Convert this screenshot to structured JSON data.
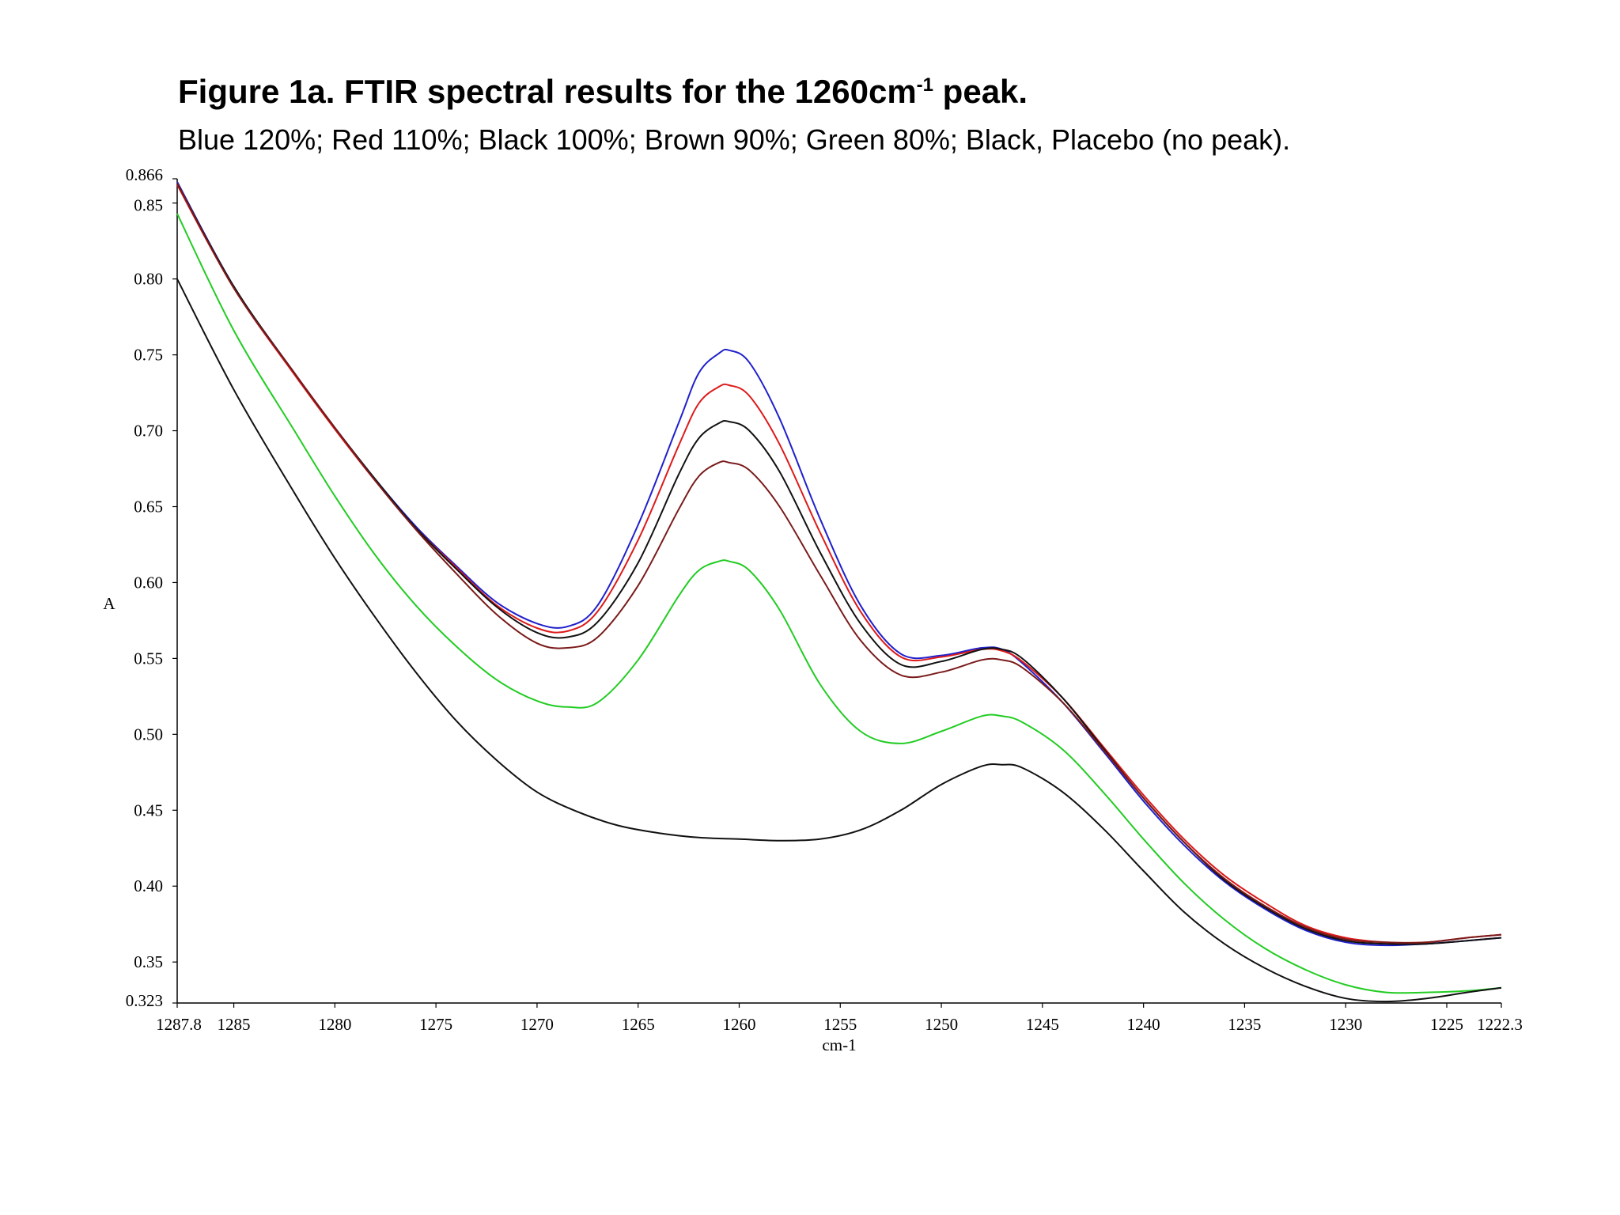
{
  "header": {
    "title_main": "Figure 1a. FTIR spectral results for the 1260cm",
    "title_sup": "-1",
    "title_end": " peak.",
    "subtitle": "Blue 120%; Red 110%; Black 100%; Brown 90%; Green 80%; Black, Placebo (no peak)."
  },
  "chart_data": {
    "type": "line",
    "title": "Figure 1a. FTIR spectral results for the 1260cm-1 peak.",
    "subtitle": "Blue 120%; Red 110%; Black 100%; Brown 90%; Green 80%; Black, Placebo (no peak).",
    "xlabel": "cm-1",
    "ylabel": "A",
    "xlim": [
      1287.8,
      1222.3
    ],
    "ylim": [
      0.323,
      0.866
    ],
    "x_reversed": true,
    "grid": false,
    "legend": "none",
    "x_ticks": [
      "1287.8",
      "1285",
      "1280",
      "1275",
      "1270",
      "1265",
      "1260",
      "1255",
      "1250",
      "1245",
      "1240",
      "1235",
      "1230",
      "1225",
      "1222.3"
    ],
    "x_tick_values": [
      1287.8,
      1285,
      1280,
      1275,
      1270,
      1265,
      1260,
      1255,
      1250,
      1245,
      1240,
      1235,
      1230,
      1225,
      1222.3
    ],
    "y_ticks": [
      "0.866",
      "0.85",
      "0.80",
      "0.75",
      "0.70",
      "0.65",
      "0.60",
      "0.55",
      "0.50",
      "0.45",
      "0.40",
      "0.35",
      "0.323"
    ],
    "y_tick_values": [
      0.866,
      0.85,
      0.8,
      0.75,
      0.7,
      0.65,
      0.6,
      0.55,
      0.5,
      0.45,
      0.4,
      0.35,
      0.323
    ],
    "series": [
      {
        "color": "#2020cc",
        "x": [
          1287.8,
          1285,
          1282,
          1280,
          1278,
          1276,
          1274,
          1272,
          1270,
          1268.5,
          1267,
          1265,
          1263,
          1262,
          1261,
          1260.5,
          1259.5,
          1258,
          1256,
          1254,
          1252,
          1250,
          1248,
          1247,
          1246,
          1244,
          1242,
          1240,
          1238,
          1236,
          1234,
          1232,
          1230,
          1228,
          1226,
          1224,
          1222.3
        ],
        "y": [
          0.864,
          0.795,
          0.738,
          0.702,
          0.668,
          0.637,
          0.611,
          0.587,
          0.573,
          0.571,
          0.585,
          0.638,
          0.705,
          0.738,
          0.751,
          0.753,
          0.745,
          0.708,
          0.642,
          0.585,
          0.553,
          0.552,
          0.557,
          0.556,
          0.547,
          0.521,
          0.489,
          0.456,
          0.427,
          0.403,
          0.385,
          0.371,
          0.363,
          0.361,
          0.362,
          0.364,
          0.366
        ]
      },
      {
        "color": "#dd1a1a",
        "x": [
          1287.8,
          1285,
          1282,
          1280,
          1278,
          1276,
          1274,
          1272,
          1270,
          1268.5,
          1267,
          1265,
          1263,
          1262,
          1261,
          1260.5,
          1259.5,
          1258,
          1256,
          1254,
          1252,
          1250,
          1248,
          1247,
          1246,
          1244,
          1242,
          1240,
          1238,
          1236,
          1234,
          1232,
          1230,
          1228,
          1226,
          1224,
          1222.3
        ],
        "y": [
          0.862,
          0.794,
          0.737,
          0.701,
          0.667,
          0.636,
          0.61,
          0.585,
          0.57,
          0.568,
          0.581,
          0.628,
          0.69,
          0.718,
          0.729,
          0.73,
          0.723,
          0.691,
          0.633,
          0.581,
          0.551,
          0.551,
          0.556,
          0.555,
          0.548,
          0.524,
          0.492,
          0.46,
          0.431,
          0.407,
          0.389,
          0.374,
          0.366,
          0.363,
          0.363,
          0.366,
          0.368
        ]
      },
      {
        "color": "#111111",
        "x": [
          1287.8,
          1285,
          1282,
          1280,
          1278,
          1276,
          1274,
          1272,
          1270,
          1268.5,
          1267,
          1265,
          1263,
          1262,
          1261,
          1260.5,
          1259.5,
          1258,
          1256,
          1254,
          1252,
          1250,
          1248,
          1247,
          1246,
          1244,
          1242,
          1240,
          1238,
          1236,
          1234,
          1232,
          1230,
          1228,
          1226,
          1224,
          1222.3
        ],
        "y": [
          0.863,
          0.795,
          0.738,
          0.702,
          0.668,
          0.636,
          0.609,
          0.584,
          0.567,
          0.564,
          0.574,
          0.613,
          0.671,
          0.695,
          0.705,
          0.706,
          0.7,
          0.673,
          0.62,
          0.573,
          0.546,
          0.548,
          0.556,
          0.556,
          0.55,
          0.524,
          0.491,
          0.458,
          0.429,
          0.404,
          0.386,
          0.372,
          0.364,
          0.362,
          0.362,
          0.364,
          0.366
        ]
      },
      {
        "color": "#7a1a1a",
        "x": [
          1287.8,
          1285,
          1282,
          1280,
          1278,
          1276,
          1274,
          1272,
          1270,
          1268.5,
          1267,
          1265,
          1263,
          1262,
          1261,
          1260.5,
          1259.5,
          1258,
          1256,
          1254,
          1252,
          1250,
          1248,
          1247,
          1246,
          1244,
          1242,
          1240,
          1238,
          1236,
          1234,
          1232,
          1230,
          1228,
          1226,
          1224,
          1222.3
        ],
        "y": [
          0.863,
          0.794,
          0.738,
          0.702,
          0.667,
          0.635,
          0.606,
          0.579,
          0.56,
          0.557,
          0.564,
          0.598,
          0.648,
          0.67,
          0.679,
          0.679,
          0.674,
          0.65,
          0.605,
          0.562,
          0.539,
          0.541,
          0.549,
          0.549,
          0.544,
          0.521,
          0.49,
          0.458,
          0.429,
          0.405,
          0.387,
          0.373,
          0.365,
          0.363,
          0.363,
          0.366,
          0.368
        ]
      },
      {
        "color": "#22cc22",
        "x": [
          1287.8,
          1285,
          1282,
          1280,
          1278,
          1276,
          1274,
          1272,
          1270,
          1268.5,
          1267,
          1265,
          1263,
          1262,
          1261,
          1260.5,
          1259.5,
          1258,
          1256,
          1254,
          1252,
          1250,
          1248,
          1247,
          1246,
          1244,
          1242,
          1240,
          1238,
          1236,
          1234,
          1232,
          1230,
          1228,
          1226,
          1224,
          1222.3
        ],
        "y": [
          0.843,
          0.766,
          0.7,
          0.657,
          0.618,
          0.585,
          0.558,
          0.536,
          0.522,
          0.518,
          0.521,
          0.549,
          0.591,
          0.608,
          0.614,
          0.614,
          0.608,
          0.582,
          0.533,
          0.502,
          0.494,
          0.502,
          0.512,
          0.512,
          0.508,
          0.49,
          0.462,
          0.431,
          0.402,
          0.378,
          0.359,
          0.345,
          0.335,
          0.33,
          0.33,
          0.331,
          0.333
        ]
      },
      {
        "color": "#111111",
        "x": [
          1287.8,
          1285,
          1282,
          1280,
          1278,
          1276,
          1274,
          1272,
          1270,
          1268,
          1266,
          1264,
          1262,
          1260,
          1258,
          1256,
          1254,
          1252,
          1250,
          1248,
          1247,
          1246,
          1244,
          1242,
          1240,
          1238,
          1236,
          1234,
          1232,
          1230,
          1228,
          1226,
          1224,
          1222.3
        ],
        "y": [
          0.8,
          0.727,
          0.659,
          0.616,
          0.577,
          0.541,
          0.509,
          0.483,
          0.462,
          0.449,
          0.44,
          0.435,
          0.432,
          0.431,
          0.43,
          0.431,
          0.437,
          0.45,
          0.467,
          0.479,
          0.48,
          0.478,
          0.462,
          0.438,
          0.41,
          0.383,
          0.362,
          0.346,
          0.334,
          0.326,
          0.324,
          0.326,
          0.33,
          0.333
        ]
      }
    ]
  }
}
